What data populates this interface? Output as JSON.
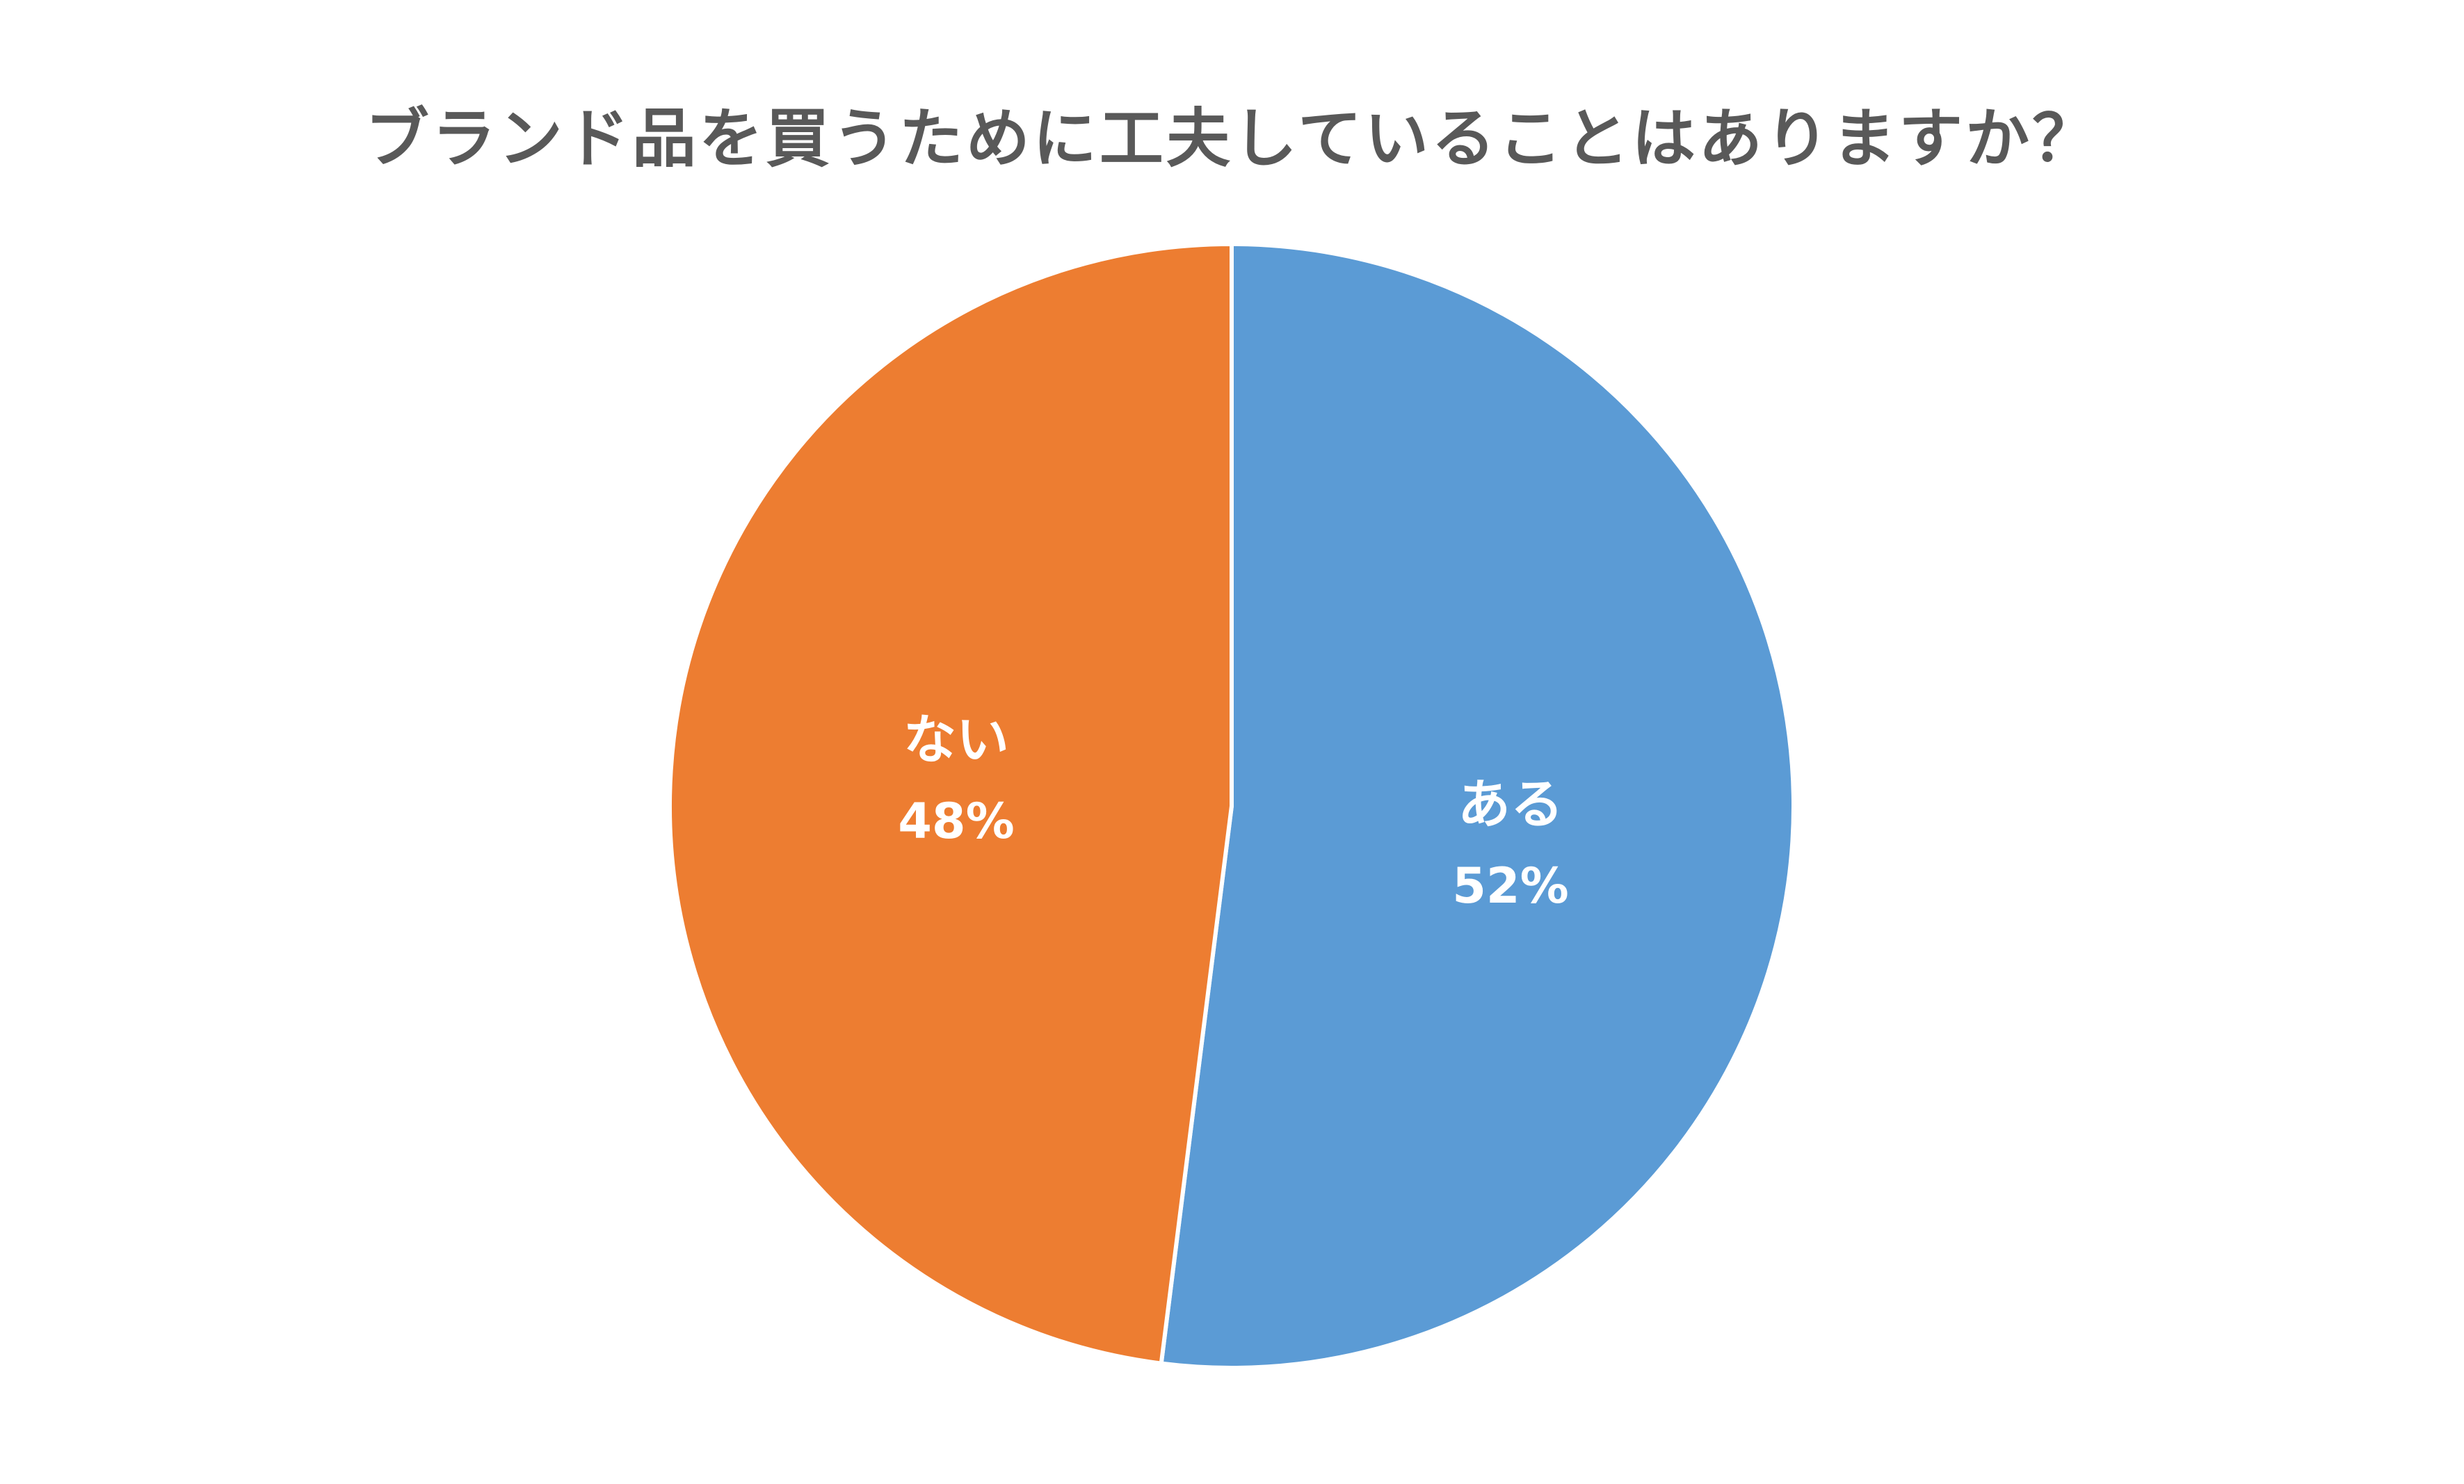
{
  "chart_data": {
    "type": "pie",
    "title": "ブランド品を買うためにに工夫していることはありますか？",
    "start": "top",
    "direction": "clockwise",
    "slices": [
      {
        "label": "ある",
        "value": 52,
        "value_label": "52%",
        "color": "#5B9BD5"
      },
      {
        "label": "ない",
        "value": 48,
        "value_label": "48%",
        "color": "#ED7D31"
      }
    ]
  }
}
